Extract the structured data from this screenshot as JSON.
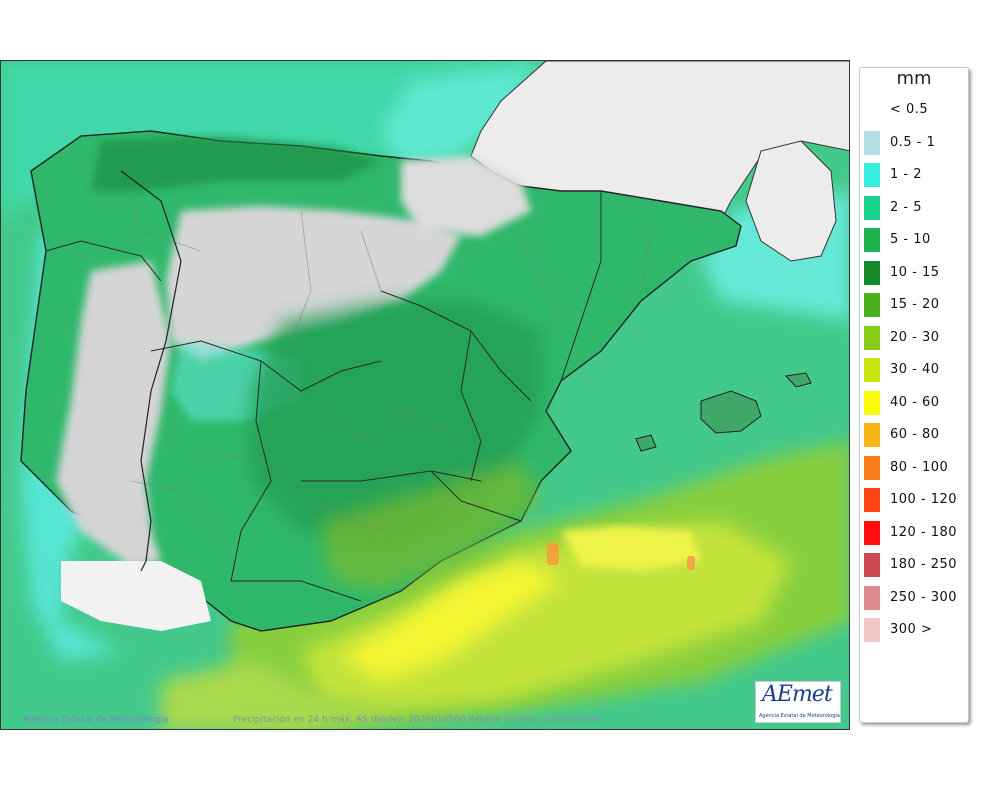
{
  "map": {
    "credit": "Agencia Estatal de Meteorología",
    "caption": "Precipitación en 24 h máx. AS Validez: 2026010500 Pasada modelo: 2026010300",
    "logo": {
      "word": "AEmet",
      "subtitle": "Agencia Estatal de Meteorología"
    },
    "colors": {
      "land_dry": "#d9d9d9",
      "sea_low": "#6fe8d8",
      "cyan": "#3ce6d2",
      "green_light": "#1fcf8a",
      "green_mid": "#29b86a",
      "green_dark": "#219a52",
      "green_olive": "#6cc431",
      "yellow_green": "#c6e62e",
      "yellow": "#f6f72a",
      "orange": "#f39b2a",
      "neighbour_land": "#e7e7e7"
    }
  },
  "legend": {
    "unit": "mm",
    "items": [
      {
        "label": "< 0.5",
        "color": "#ffffff"
      },
      {
        "label": "0.5 - 1",
        "color": "#b4dde6"
      },
      {
        "label": "1 - 2",
        "color": "#37efdd"
      },
      {
        "label": "2 - 5",
        "color": "#14d287"
      },
      {
        "label": "5 - 10",
        "color": "#1fb351"
      },
      {
        "label": "10 - 15",
        "color": "#178a2b"
      },
      {
        "label": "15 - 20",
        "color": "#4bb01d"
      },
      {
        "label": "20 - 30",
        "color": "#88cb17"
      },
      {
        "label": "30 - 40",
        "color": "#c6e40f"
      },
      {
        "label": "40 - 60",
        "color": "#f9f90a"
      },
      {
        "label": "60 - 80",
        "color": "#f8b618"
      },
      {
        "label": "80 - 100",
        "color": "#fb7b18"
      },
      {
        "label": "100 - 120",
        "color": "#fc4417"
      },
      {
        "label": "120 - 180",
        "color": "#fd0d10"
      },
      {
        "label": "180 - 250",
        "color": "#cd4850"
      },
      {
        "label": "250 - 300",
        "color": "#de8b8f"
      },
      {
        "label": "300 >",
        "color": "#f3c8c8"
      }
    ]
  }
}
